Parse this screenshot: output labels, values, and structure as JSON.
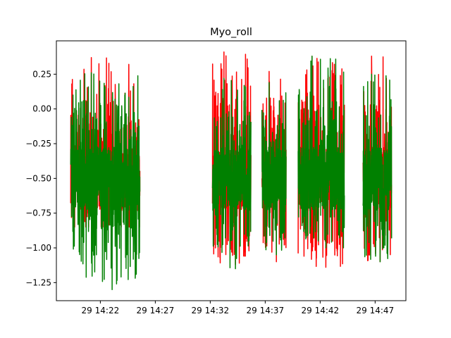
{
  "chart_data": {
    "type": "line",
    "title": "Myo_roll",
    "xlabel": "",
    "ylabel": "",
    "ylim": [
      -1.38,
      0.49
    ],
    "xlim_minutes": [
      18.0,
      49.8
    ],
    "yticks": [
      0.25,
      0.0,
      -0.25,
      -0.5,
      -0.75,
      -1.0,
      -1.25
    ],
    "ytick_labels": [
      "0.25",
      "0.00",
      "−0.25",
      "−0.50",
      "−0.75",
      "−1.00",
      "−1.25"
    ],
    "xticks_minutes": [
      22,
      27,
      32,
      37,
      42,
      47
    ],
    "xtick_labels": [
      "29 14:22",
      "29 14:27",
      "29 14:32",
      "29 14:37",
      "29 14:42",
      "29 14:47"
    ],
    "colors": {
      "series_a": "#ff0000",
      "series_b": "#008000",
      "axes": "#000000",
      "background": "#ffffff"
    },
    "segments": [
      {
        "start": 19.3,
        "end": 25.6,
        "a_range": [
          -0.85,
          0.37
        ],
        "b_range": [
          -1.3,
          0.26
        ]
      },
      {
        "start": 32.2,
        "end": 35.7,
        "a_range": [
          -1.12,
          0.41
        ],
        "b_range": [
          -1.15,
          0.22
        ]
      },
      {
        "start": 36.7,
        "end": 38.9,
        "a_range": [
          -1.1,
          0.27
        ],
        "b_range": [
          -1.05,
          0.19
        ]
      },
      {
        "start": 40.0,
        "end": 44.2,
        "a_range": [
          -1.14,
          0.38
        ],
        "b_range": [
          -1.0,
          0.38
        ]
      },
      {
        "start": 45.9,
        "end": 48.5,
        "a_range": [
          -1.1,
          0.38
        ],
        "b_range": [
          -1.1,
          0.25
        ]
      }
    ],
    "series": [
      {
        "color": "#ff0000"
      },
      {
        "color": "#008000"
      }
    ]
  }
}
